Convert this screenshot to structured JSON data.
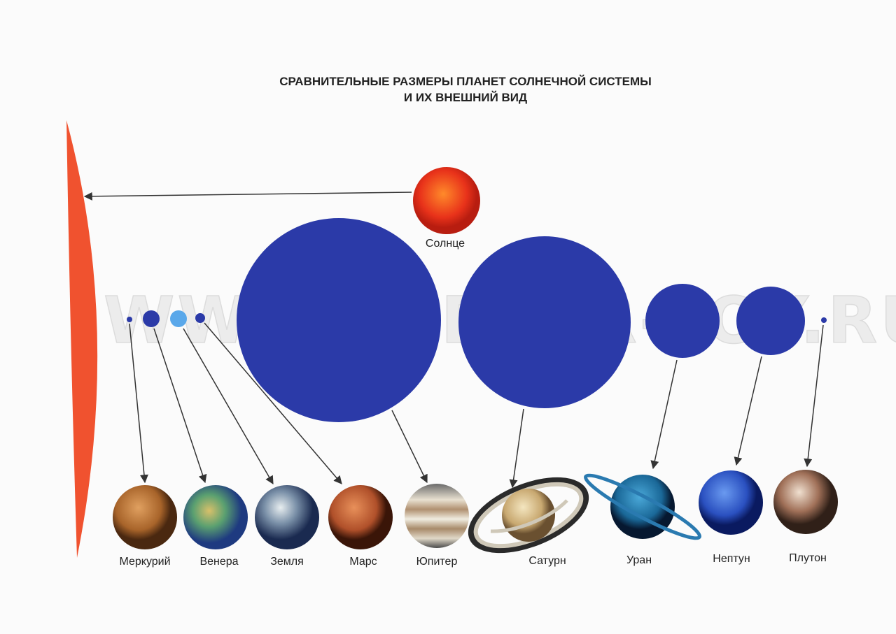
{
  "title_line1": "СРАВНИТЕЛЬНЫЕ РАЗМЕРЫ ПЛАНЕТ СОЛНЕЧНОЙ СИСТЕМЫ",
  "title_line2": "И ИХ ВНЕШНИЙ ВИД",
  "watermark": "WWW.CLEVER-TOY.RU",
  "sun_label": "Солнце",
  "planets": [
    {
      "name": "Меркурий"
    },
    {
      "name": "Венера"
    },
    {
      "name": "Земля"
    },
    {
      "name": "Марс"
    },
    {
      "name": "Юпитер"
    },
    {
      "name": "Сатурн"
    },
    {
      "name": "Уран"
    },
    {
      "name": "Нептун"
    },
    {
      "name": "Плутон"
    }
  ],
  "colors": {
    "size_circle": "#2b3aa8",
    "earth_circle": "#5aa8ea",
    "sun_edge": "#f0522f",
    "arrow": "#333333"
  }
}
